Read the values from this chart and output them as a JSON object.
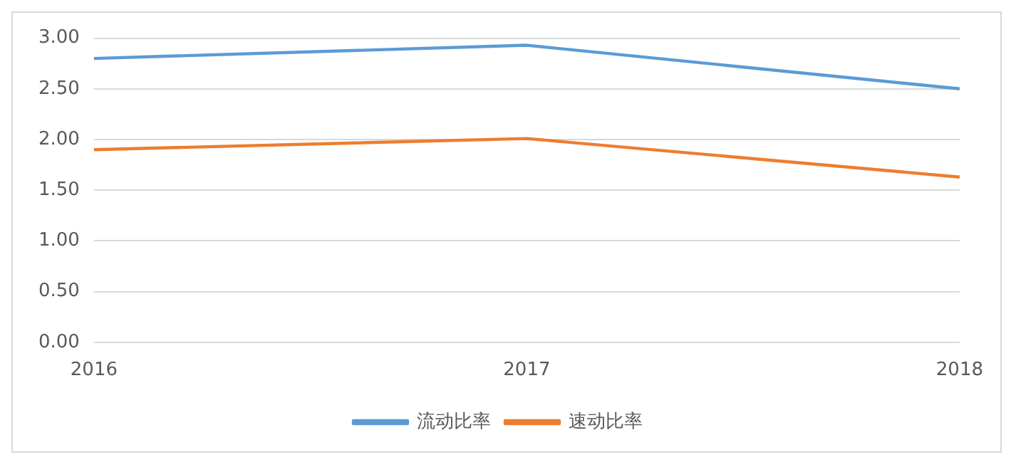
{
  "chart_data": {
    "type": "line",
    "categories": [
      "2016",
      "2017",
      "2018"
    ],
    "series": [
      {
        "name": "流动比率",
        "color": "#5b9bd5",
        "values": [
          2.8,
          2.93,
          2.5
        ]
      },
      {
        "name": "速动比率",
        "color": "#ed7d31",
        "values": [
          1.9,
          2.01,
          1.63
        ]
      }
    ],
    "ylim": [
      0,
      3
    ],
    "yticks": [
      {
        "value": 0,
        "label": "0.00"
      },
      {
        "value": 0.5,
        "label": "0.50"
      },
      {
        "value": 1,
        "label": "1.00"
      },
      {
        "value": 1.5,
        "label": "1.50"
      },
      {
        "value": 2,
        "label": "2.00"
      },
      {
        "value": 2.5,
        "label": "2.50"
      },
      {
        "value": 3,
        "label": "3.00"
      }
    ],
    "grid": "y",
    "legend": "bottom",
    "marker": "none",
    "line_style": "solid"
  }
}
